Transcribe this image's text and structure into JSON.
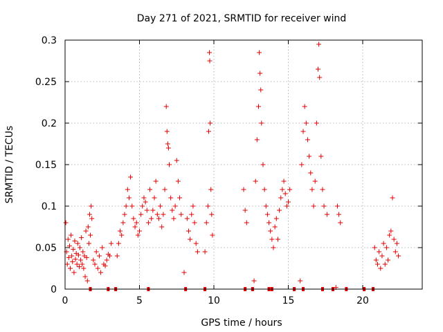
{
  "chart_data": {
    "type": "scatter",
    "title": "Day 271 of 2021, SRMTID for receiver wind",
    "xlabel": "GPS time / hours",
    "ylabel": "SRMTID / TECUs",
    "xlim": [
      0,
      24
    ],
    "ylim": [
      0,
      0.3
    ],
    "x_ticks": [
      0,
      5,
      10,
      15,
      20
    ],
    "y_ticks": [
      0,
      0.05,
      0.1,
      0.15,
      0.2,
      0.25,
      0.3
    ],
    "x_tick_labels": [
      "0",
      "5",
      "10",
      "15",
      "20"
    ],
    "y_tick_labels": [
      "0",
      "0.05",
      "0.1",
      "0.15",
      "0.2",
      "0.25",
      "0.3"
    ],
    "grid": true,
    "marker": "+",
    "series": [
      {
        "name": "SRMTID",
        "color": "#e00000",
        "points": [
          [
            0.05,
            0.08
          ],
          [
            0.1,
            0.045
          ],
          [
            0.15,
            0.03
          ],
          [
            0.2,
            0.06
          ],
          [
            0.25,
            0.038
          ],
          [
            0.3,
            0.052
          ],
          [
            0.35,
            0.025
          ],
          [
            0.4,
            0.065
          ],
          [
            0.45,
            0.04
          ],
          [
            0.5,
            0.033
          ],
          [
            0.55,
            0.048
          ],
          [
            0.6,
            0.02
          ],
          [
            0.65,
            0.058
          ],
          [
            0.7,
            0.036
          ],
          [
            0.75,
            0.043
          ],
          [
            0.8,
            0.03
          ],
          [
            0.85,
            0.055
          ],
          [
            0.9,
            0.041
          ],
          [
            0.95,
            0.027
          ],
          [
            1.0,
            0.05
          ],
          [
            1.05,
            0.035
          ],
          [
            1.1,
            0.062
          ],
          [
            1.15,
            0.03
          ],
          [
            1.2,
            0.045
          ],
          [
            1.25,
            0.025
          ],
          [
            1.3,
            0.04
          ],
          [
            1.35,
            0.015
          ],
          [
            1.4,
            0.07
          ],
          [
            1.45,
            0.038
          ],
          [
            1.5,
            0.01
          ],
          [
            1.55,
            0.075
          ],
          [
            1.6,
            0.055
          ],
          [
            1.65,
            0.09
          ],
          [
            1.7,
            0.065
          ],
          [
            1.75,
            0.1
          ],
          [
            1.8,
            0.085
          ],
          [
            1.9,
            0.035
          ],
          [
            2.0,
            0.03
          ],
          [
            2.1,
            0.045
          ],
          [
            2.2,
            0.025
          ],
          [
            2.3,
            0.04
          ],
          [
            2.4,
            0.02
          ],
          [
            2.5,
            0.05
          ],
          [
            2.6,
            0.03
          ],
          [
            2.7,
            0.028
          ],
          [
            2.8,
            0.035
          ],
          [
            2.9,
            0.042
          ],
          [
            3.0,
            0.04
          ],
          [
            3.1,
            0.055
          ],
          [
            3.5,
            0.04
          ],
          [
            3.6,
            0.055
          ],
          [
            3.7,
            0.07
          ],
          [
            3.8,
            0.065
          ],
          [
            3.9,
            0.08
          ],
          [
            4.0,
            0.09
          ],
          [
            4.1,
            0.1
          ],
          [
            4.2,
            0.12
          ],
          [
            4.3,
            0.11
          ],
          [
            4.4,
            0.135
          ],
          [
            4.5,
            0.1
          ],
          [
            4.6,
            0.085
          ],
          [
            4.7,
            0.075
          ],
          [
            4.8,
            0.08
          ],
          [
            4.9,
            0.065
          ],
          [
            5.0,
            0.07
          ],
          [
            5.1,
            0.09
          ],
          [
            5.2,
            0.1
          ],
          [
            5.3,
            0.11
          ],
          [
            5.4,
            0.105
          ],
          [
            5.5,
            0.095
          ],
          [
            5.6,
            0.08
          ],
          [
            5.7,
            0.12
          ],
          [
            5.8,
            0.085
          ],
          [
            5.9,
            0.095
          ],
          [
            6.0,
            0.11
          ],
          [
            6.1,
            0.13
          ],
          [
            6.2,
            0.09
          ],
          [
            6.3,
            0.085
          ],
          [
            6.4,
            0.1
          ],
          [
            6.5,
            0.075
          ],
          [
            6.6,
            0.09
          ],
          [
            6.7,
            0.12
          ],
          [
            6.8,
            0.22
          ],
          [
            6.85,
            0.19
          ],
          [
            6.9,
            0.175
          ],
          [
            6.95,
            0.17
          ],
          [
            7.0,
            0.15
          ],
          [
            7.1,
            0.11
          ],
          [
            7.2,
            0.095
          ],
          [
            7.3,
            0.085
          ],
          [
            7.4,
            0.1
          ],
          [
            7.5,
            0.155
          ],
          [
            7.6,
            0.13
          ],
          [
            7.7,
            0.11
          ],
          [
            7.8,
            0.09
          ],
          [
            8.0,
            0.02
          ],
          [
            8.2,
            0.085
          ],
          [
            8.3,
            0.07
          ],
          [
            8.4,
            0.06
          ],
          [
            8.5,
            0.09
          ],
          [
            8.6,
            0.1
          ],
          [
            8.7,
            0.08
          ],
          [
            8.8,
            0.055
          ],
          [
            8.9,
            0.045
          ],
          [
            9.4,
            0.045
          ],
          [
            9.5,
            0.08
          ],
          [
            9.6,
            0.1
          ],
          [
            9.65,
            0.19
          ],
          [
            9.7,
            0.285
          ],
          [
            9.72,
            0.275
          ],
          [
            9.75,
            0.2
          ],
          [
            9.8,
            0.12
          ],
          [
            9.85,
            0.09
          ],
          [
            9.9,
            0.065
          ],
          [
            12.0,
            0.12
          ],
          [
            12.1,
            0.095
          ],
          [
            12.2,
            0.08
          ],
          [
            12.7,
            0.01
          ],
          [
            12.8,
            0.13
          ],
          [
            12.9,
            0.18
          ],
          [
            13.0,
            0.22
          ],
          [
            13.05,
            0.285
          ],
          [
            13.1,
            0.26
          ],
          [
            13.15,
            0.24
          ],
          [
            13.2,
            0.2
          ],
          [
            13.3,
            0.15
          ],
          [
            13.4,
            0.12
          ],
          [
            13.5,
            0.1
          ],
          [
            13.6,
            0.09
          ],
          [
            13.7,
            0.08
          ],
          [
            13.8,
            0.07
          ],
          [
            13.9,
            0.06
          ],
          [
            14.0,
            0.05
          ],
          [
            14.1,
            0.075
          ],
          [
            14.2,
            0.085
          ],
          [
            14.3,
            0.06
          ],
          [
            14.4,
            0.095
          ],
          [
            14.5,
            0.11
          ],
          [
            14.6,
            0.12
          ],
          [
            14.7,
            0.13
          ],
          [
            14.8,
            0.115
          ],
          [
            14.9,
            0.1
          ],
          [
            15.0,
            0.105
          ],
          [
            15.1,
            0.12
          ],
          [
            15.8,
            0.01
          ],
          [
            15.9,
            0.15
          ],
          [
            16.0,
            0.19
          ],
          [
            16.1,
            0.22
          ],
          [
            16.2,
            0.2
          ],
          [
            16.3,
            0.18
          ],
          [
            16.4,
            0.16
          ],
          [
            16.5,
            0.14
          ],
          [
            16.6,
            0.12
          ],
          [
            16.7,
            0.1
          ],
          [
            16.8,
            0.13
          ],
          [
            16.9,
            0.2
          ],
          [
            17.0,
            0.265
          ],
          [
            17.05,
            0.295
          ],
          [
            17.1,
            0.255
          ],
          [
            17.2,
            0.16
          ],
          [
            17.3,
            0.12
          ],
          [
            17.4,
            0.1
          ],
          [
            17.6,
            0.09
          ],
          [
            18.3,
            0.1
          ],
          [
            18.4,
            0.09
          ],
          [
            18.5,
            0.08
          ],
          [
            18.2,
            0.002
          ],
          [
            20.8,
            0.05
          ],
          [
            20.9,
            0.035
          ],
          [
            21.0,
            0.03
          ],
          [
            21.1,
            0.045
          ],
          [
            21.2,
            0.025
          ],
          [
            21.3,
            0.04
          ],
          [
            21.4,
            0.055
          ],
          [
            21.5,
            0.03
          ],
          [
            21.6,
            0.05
          ],
          [
            21.7,
            0.035
          ],
          [
            21.8,
            0.065
          ],
          [
            21.9,
            0.07
          ],
          [
            22.0,
            0.11
          ],
          [
            22.1,
            0.06
          ],
          [
            22.2,
            0.045
          ],
          [
            22.3,
            0.055
          ],
          [
            22.4,
            0.04
          ]
        ]
      }
    ],
    "data_gaps_at_zero": [
      1.7,
      2.9,
      3.4,
      5.6,
      8.1,
      9.4,
      12.1,
      12.6,
      13.7,
      13.9,
      15.4,
      16.0,
      17.3,
      18.0,
      18.9,
      20.1,
      20.7
    ]
  }
}
